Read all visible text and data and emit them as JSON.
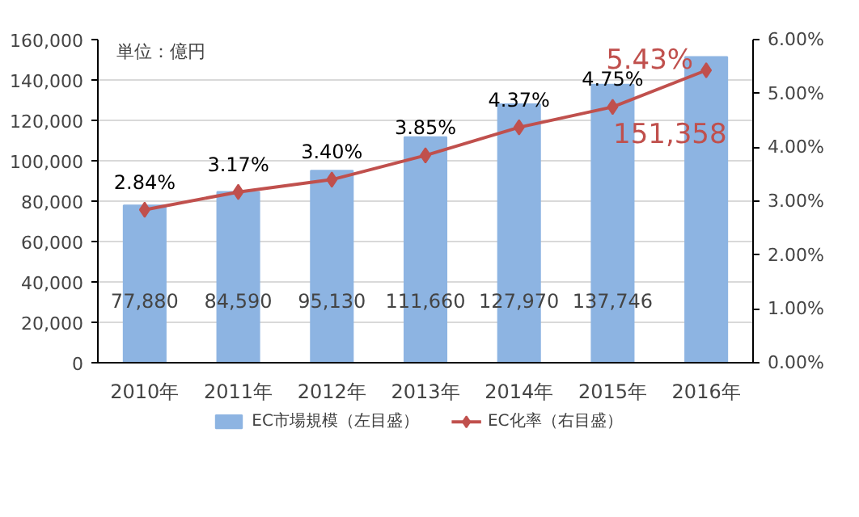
{
  "chart_data": {
    "type": "bar",
    "categories": [
      "2010年",
      "2011年",
      "2012年",
      "2013年",
      "2014年",
      "2015年",
      "2016年"
    ],
    "series": [
      {
        "name": "EC市場規模（左目盛）",
        "color": "#8db4e2",
        "values": [
          77880,
          84590,
          95130,
          111660,
          127970,
          137746,
          151358
        ],
        "value_labels": [
          "77,880",
          "84,590",
          "95,130",
          "111,660",
          "127,970",
          "137,746",
          "151,358"
        ]
      },
      {
        "name": "EC化率（右目盛）",
        "type": "line",
        "axis": "y2",
        "color": "#c0504d",
        "marker": "diamond",
        "values": [
          2.84,
          3.17,
          3.4,
          3.85,
          4.37,
          4.75,
          5.43
        ],
        "value_labels": [
          "2.84%",
          "3.17%",
          "3.40%",
          "3.85%",
          "4.37%",
          "4.75%",
          "5.43%"
        ]
      }
    ],
    "annotations": [
      "単位：億円"
    ],
    "ylim": [
      0,
      160000
    ],
    "yticks": [
      {
        "value": 0,
        "label": "0"
      },
      {
        "value": 20000,
        "label": "20,000"
      },
      {
        "value": 40000,
        "label": "40,000"
      },
      {
        "value": 60000,
        "label": "60,000"
      },
      {
        "value": 80000,
        "label": "80,000"
      },
      {
        "value": 100000,
        "label": "100,000"
      },
      {
        "value": 120000,
        "label": "120,000"
      },
      {
        "value": 140000,
        "label": "140,000"
      },
      {
        "value": 160000,
        "label": "160,000"
      }
    ],
    "y2lim": [
      0,
      6
    ],
    "y2ticks": [
      {
        "value": 0,
        "label": "0.00%"
      },
      {
        "value": 1,
        "label": "1.00%"
      },
      {
        "value": 2,
        "label": "2.00%"
      },
      {
        "value": 3,
        "label": "3.00%"
      },
      {
        "value": 4,
        "label": "4.00%"
      },
      {
        "value": 5,
        "label": "5.00%"
      },
      {
        "value": 6,
        "label": "6.00%"
      }
    ],
    "grid": "y",
    "legend": "bottom"
  }
}
